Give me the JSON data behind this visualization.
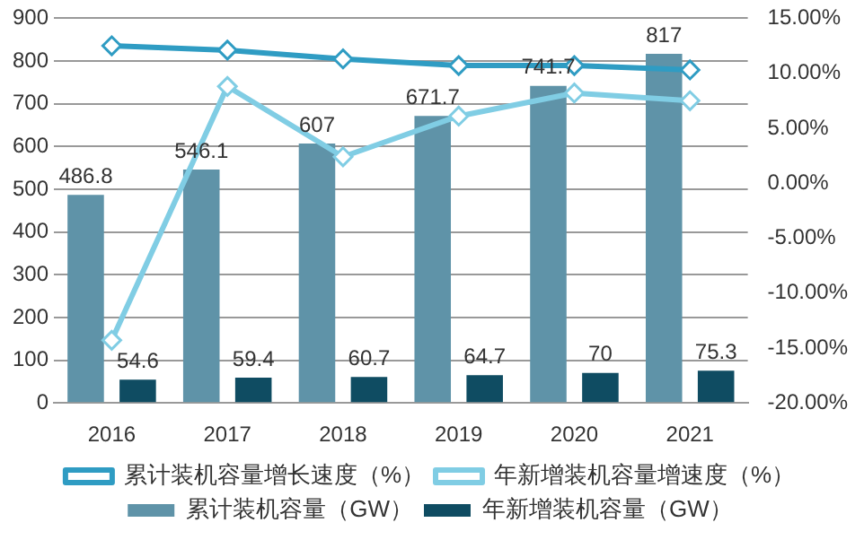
{
  "chart_data": {
    "type": "bar",
    "categories": [
      "2016",
      "2017",
      "2018",
      "2019",
      "2020",
      "2021"
    ],
    "series": [
      {
        "name": "累计装机容量（GW）",
        "color": "#5f93a8",
        "values": [
          486.8,
          546.1,
          607,
          671.7,
          741.7,
          817
        ],
        "value_labels": [
          "486.8",
          "546.1",
          "607",
          "671.7",
          "741.7",
          "817"
        ]
      },
      {
        "name": "年新增装机容量（GW）",
        "color": "#0f4c62",
        "values": [
          54.6,
          59.4,
          60.7,
          64.7,
          70,
          75.3
        ],
        "value_labels": [
          "54.6",
          "59.4",
          "60.7",
          "64.7",
          "70",
          "75.3"
        ]
      },
      {
        "name": "累计装机容量增长速度（%）",
        "type": "line",
        "axis": "y2",
        "color": "#2f9cc3",
        "values": [
          12.5,
          12.1,
          11.3,
          10.7,
          10.7,
          10.3
        ]
      },
      {
        "name": "年新增装机容量增速度（%）",
        "type": "line",
        "axis": "y2",
        "color": "#80cde4",
        "values": [
          -14.3,
          8.8,
          2.4,
          6.1,
          8.2,
          7.5
        ]
      }
    ],
    "ylim": [
      0,
      900
    ],
    "yticks": [
      0,
      100,
      200,
      300,
      400,
      500,
      600,
      700,
      800,
      900
    ],
    "y2lim": [
      -20,
      15
    ],
    "y2ticks": [
      {
        "value": -20,
        "label": "-20.00%"
      },
      {
        "value": -15,
        "label": "-15.00%"
      },
      {
        "value": -10,
        "label": "-10.00%"
      },
      {
        "value": -5,
        "label": "-5.00%"
      },
      {
        "value": 0,
        "label": "0.00%"
      },
      {
        "value": 5,
        "label": "5.00%"
      },
      {
        "value": 10,
        "label": "10.00%"
      },
      {
        "value": 15,
        "label": "15.00%"
      }
    ],
    "grid": "y",
    "legend": "bottom",
    "marker": "diamond",
    "line_style": "solid"
  }
}
